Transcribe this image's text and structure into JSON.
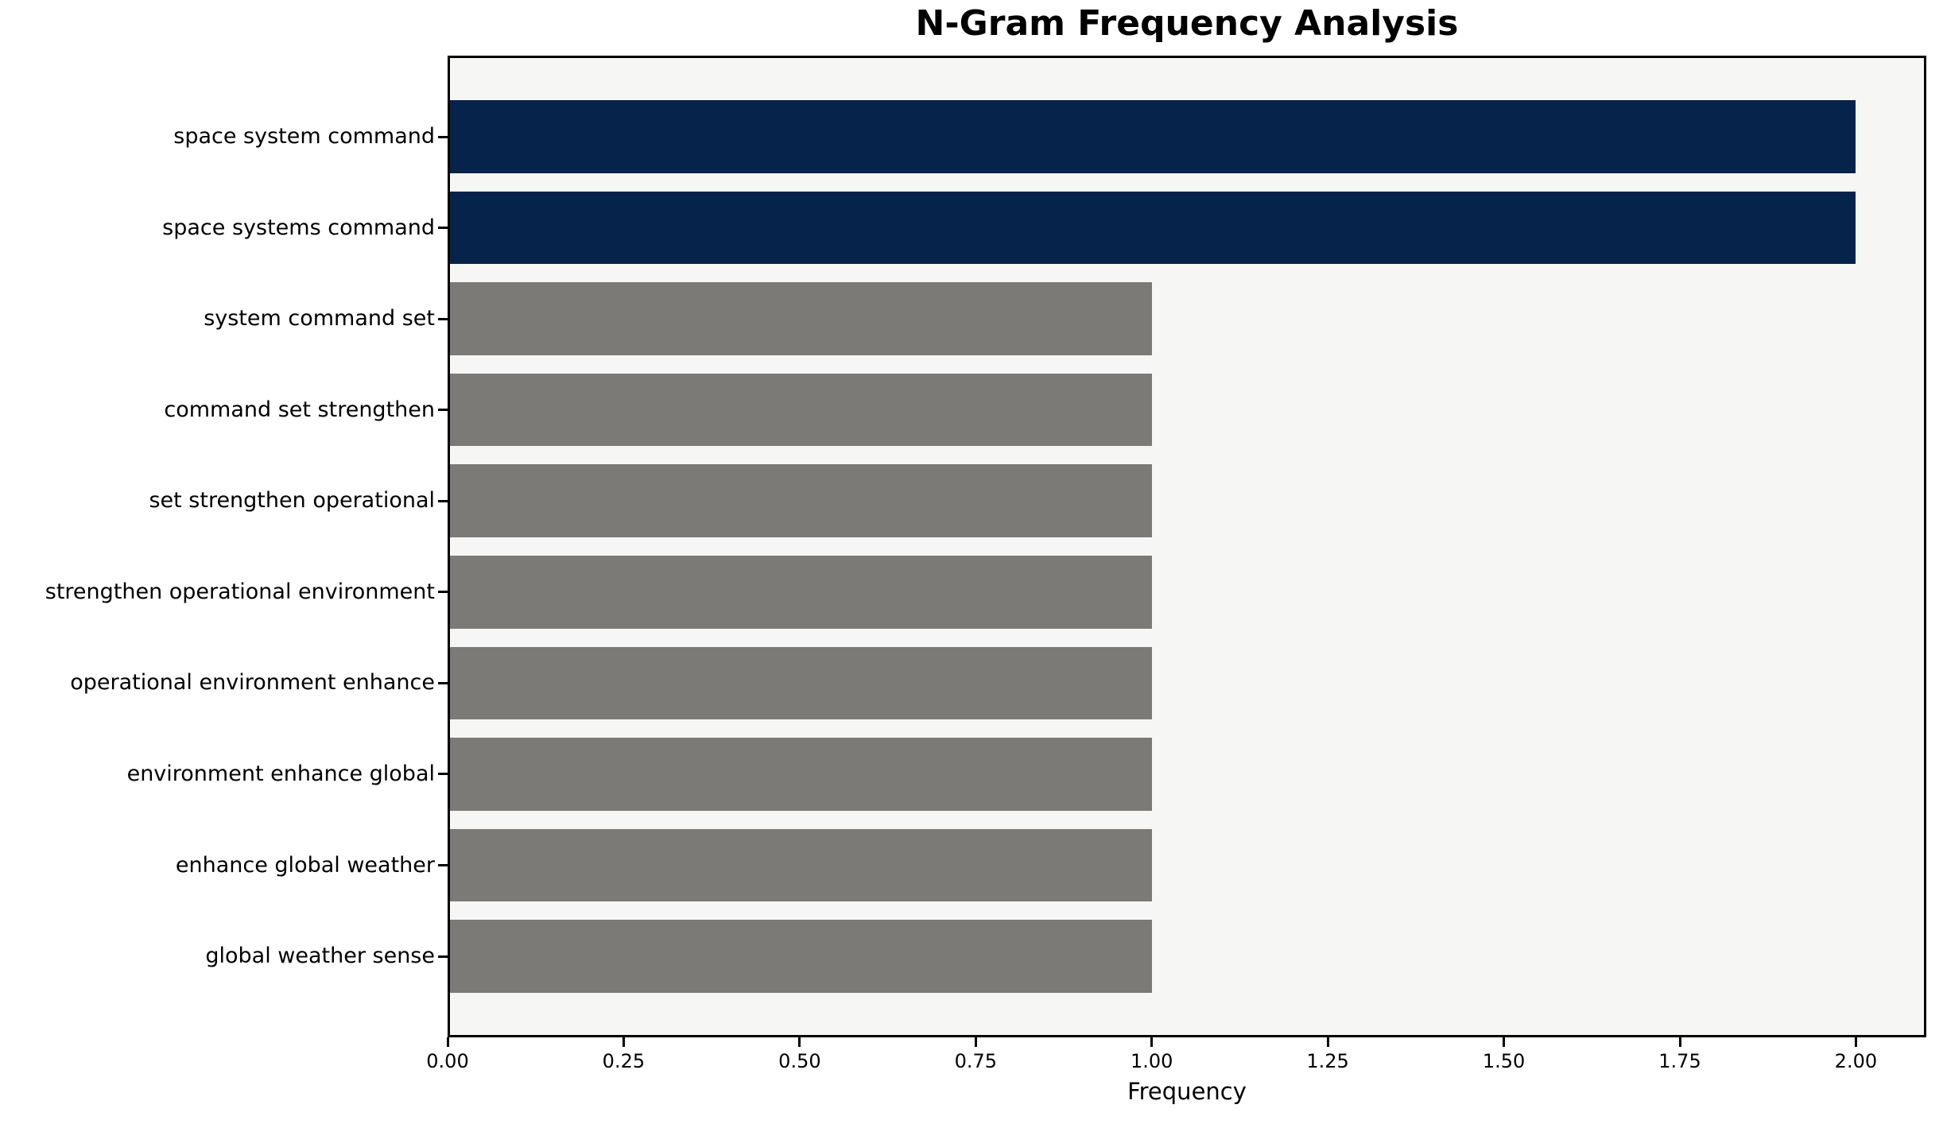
{
  "chart_data": {
    "type": "bar",
    "orientation": "horizontal",
    "title": "N-Gram Frequency Analysis",
    "xlabel": "Frequency",
    "ylabel": "",
    "categories": [
      "space system command",
      "space systems command",
      "system command set",
      "command set strengthen",
      "set strengthen operational",
      "strengthen operational environment",
      "operational environment enhance",
      "environment enhance global",
      "enhance global weather",
      "global weather sense"
    ],
    "values": [
      2,
      2,
      1,
      1,
      1,
      1,
      1,
      1,
      1,
      1
    ],
    "bar_colors": [
      "#05234b",
      "#05234b",
      "#7b7a77",
      "#7b7a77",
      "#7b7a77",
      "#7b7a77",
      "#7b7a77",
      "#7b7a77",
      "#7b7a77",
      "#7b7a77"
    ],
    "xlim": [
      0,
      2.1
    ],
    "ylim": [
      -0.89,
      9.89
    ],
    "bar_height_units": 0.8,
    "x_ticks": [
      {
        "value": 0.0,
        "label": "0.00"
      },
      {
        "value": 0.25,
        "label": "0.25"
      },
      {
        "value": 0.5,
        "label": "0.50"
      },
      {
        "value": 0.75,
        "label": "0.75"
      },
      {
        "value": 1.0,
        "label": "1.00"
      },
      {
        "value": 1.25,
        "label": "1.25"
      },
      {
        "value": 1.5,
        "label": "1.50"
      },
      {
        "value": 1.75,
        "label": "1.75"
      },
      {
        "value": 2.0,
        "label": "2.00"
      }
    ],
    "grid": false,
    "legend": null,
    "plot_background": "#f6f6f5",
    "figure_background": "#ffffff",
    "spine_color": "#000000",
    "bar_color_navy": "#05234b",
    "bar_color_gray": "#7b7a77"
  }
}
